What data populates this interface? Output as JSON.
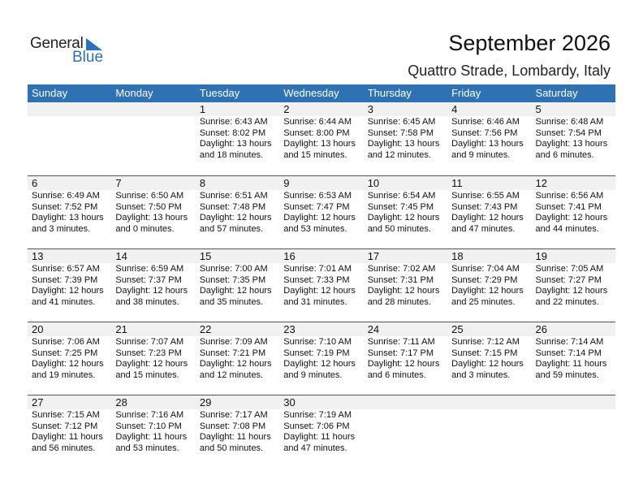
{
  "logo": {
    "word1": "General",
    "word2": "Blue"
  },
  "title": "September 2026",
  "location": "Quattro Strade, Lombardy, Italy",
  "colors": {
    "header": "#2e72b3",
    "date_band": "#f1f1f1"
  },
  "days": [
    "Sunday",
    "Monday",
    "Tuesday",
    "Wednesday",
    "Thursday",
    "Friday",
    "Saturday"
  ],
  "weeks": [
    [
      null,
      null,
      {
        "d": "1",
        "sunrise": "Sunrise: 6:43 AM",
        "sunset": "Sunset: 8:02 PM",
        "dl1": "Daylight: 13 hours",
        "dl2": "and 18 minutes."
      },
      {
        "d": "2",
        "sunrise": "Sunrise: 6:44 AM",
        "sunset": "Sunset: 8:00 PM",
        "dl1": "Daylight: 13 hours",
        "dl2": "and 15 minutes."
      },
      {
        "d": "3",
        "sunrise": "Sunrise: 6:45 AM",
        "sunset": "Sunset: 7:58 PM",
        "dl1": "Daylight: 13 hours",
        "dl2": "and 12 minutes."
      },
      {
        "d": "4",
        "sunrise": "Sunrise: 6:46 AM",
        "sunset": "Sunset: 7:56 PM",
        "dl1": "Daylight: 13 hours",
        "dl2": "and 9 minutes."
      },
      {
        "d": "5",
        "sunrise": "Sunrise: 6:48 AM",
        "sunset": "Sunset: 7:54 PM",
        "dl1": "Daylight: 13 hours",
        "dl2": "and 6 minutes."
      }
    ],
    [
      {
        "d": "6",
        "sunrise": "Sunrise: 6:49 AM",
        "sunset": "Sunset: 7:52 PM",
        "dl1": "Daylight: 13 hours",
        "dl2": "and 3 minutes."
      },
      {
        "d": "7",
        "sunrise": "Sunrise: 6:50 AM",
        "sunset": "Sunset: 7:50 PM",
        "dl1": "Daylight: 13 hours",
        "dl2": "and 0 minutes."
      },
      {
        "d": "8",
        "sunrise": "Sunrise: 6:51 AM",
        "sunset": "Sunset: 7:48 PM",
        "dl1": "Daylight: 12 hours",
        "dl2": "and 57 minutes."
      },
      {
        "d": "9",
        "sunrise": "Sunrise: 6:53 AM",
        "sunset": "Sunset: 7:47 PM",
        "dl1": "Daylight: 12 hours",
        "dl2": "and 53 minutes."
      },
      {
        "d": "10",
        "sunrise": "Sunrise: 6:54 AM",
        "sunset": "Sunset: 7:45 PM",
        "dl1": "Daylight: 12 hours",
        "dl2": "and 50 minutes."
      },
      {
        "d": "11",
        "sunrise": "Sunrise: 6:55 AM",
        "sunset": "Sunset: 7:43 PM",
        "dl1": "Daylight: 12 hours",
        "dl2": "and 47 minutes."
      },
      {
        "d": "12",
        "sunrise": "Sunrise: 6:56 AM",
        "sunset": "Sunset: 7:41 PM",
        "dl1": "Daylight: 12 hours",
        "dl2": "and 44 minutes."
      }
    ],
    [
      {
        "d": "13",
        "sunrise": "Sunrise: 6:57 AM",
        "sunset": "Sunset: 7:39 PM",
        "dl1": "Daylight: 12 hours",
        "dl2": "and 41 minutes."
      },
      {
        "d": "14",
        "sunrise": "Sunrise: 6:59 AM",
        "sunset": "Sunset: 7:37 PM",
        "dl1": "Daylight: 12 hours",
        "dl2": "and 38 minutes."
      },
      {
        "d": "15",
        "sunrise": "Sunrise: 7:00 AM",
        "sunset": "Sunset: 7:35 PM",
        "dl1": "Daylight: 12 hours",
        "dl2": "and 35 minutes."
      },
      {
        "d": "16",
        "sunrise": "Sunrise: 7:01 AM",
        "sunset": "Sunset: 7:33 PM",
        "dl1": "Daylight: 12 hours",
        "dl2": "and 31 minutes."
      },
      {
        "d": "17",
        "sunrise": "Sunrise: 7:02 AM",
        "sunset": "Sunset: 7:31 PM",
        "dl1": "Daylight: 12 hours",
        "dl2": "and 28 minutes."
      },
      {
        "d": "18",
        "sunrise": "Sunrise: 7:04 AM",
        "sunset": "Sunset: 7:29 PM",
        "dl1": "Daylight: 12 hours",
        "dl2": "and 25 minutes."
      },
      {
        "d": "19",
        "sunrise": "Sunrise: 7:05 AM",
        "sunset": "Sunset: 7:27 PM",
        "dl1": "Daylight: 12 hours",
        "dl2": "and 22 minutes."
      }
    ],
    [
      {
        "d": "20",
        "sunrise": "Sunrise: 7:06 AM",
        "sunset": "Sunset: 7:25 PM",
        "dl1": "Daylight: 12 hours",
        "dl2": "and 19 minutes."
      },
      {
        "d": "21",
        "sunrise": "Sunrise: 7:07 AM",
        "sunset": "Sunset: 7:23 PM",
        "dl1": "Daylight: 12 hours",
        "dl2": "and 15 minutes."
      },
      {
        "d": "22",
        "sunrise": "Sunrise: 7:09 AM",
        "sunset": "Sunset: 7:21 PM",
        "dl1": "Daylight: 12 hours",
        "dl2": "and 12 minutes."
      },
      {
        "d": "23",
        "sunrise": "Sunrise: 7:10 AM",
        "sunset": "Sunset: 7:19 PM",
        "dl1": "Daylight: 12 hours",
        "dl2": "and 9 minutes."
      },
      {
        "d": "24",
        "sunrise": "Sunrise: 7:11 AM",
        "sunset": "Sunset: 7:17 PM",
        "dl1": "Daylight: 12 hours",
        "dl2": "and 6 minutes."
      },
      {
        "d": "25",
        "sunrise": "Sunrise: 7:12 AM",
        "sunset": "Sunset: 7:15 PM",
        "dl1": "Daylight: 12 hours",
        "dl2": "and 3 minutes."
      },
      {
        "d": "26",
        "sunrise": "Sunrise: 7:14 AM",
        "sunset": "Sunset: 7:14 PM",
        "dl1": "Daylight: 11 hours",
        "dl2": "and 59 minutes."
      }
    ],
    [
      {
        "d": "27",
        "sunrise": "Sunrise: 7:15 AM",
        "sunset": "Sunset: 7:12 PM",
        "dl1": "Daylight: 11 hours",
        "dl2": "and 56 minutes."
      },
      {
        "d": "28",
        "sunrise": "Sunrise: 7:16 AM",
        "sunset": "Sunset: 7:10 PM",
        "dl1": "Daylight: 11 hours",
        "dl2": "and 53 minutes."
      },
      {
        "d": "29",
        "sunrise": "Sunrise: 7:17 AM",
        "sunset": "Sunset: 7:08 PM",
        "dl1": "Daylight: 11 hours",
        "dl2": "and 50 minutes."
      },
      {
        "d": "30",
        "sunrise": "Sunrise: 7:19 AM",
        "sunset": "Sunset: 7:06 PM",
        "dl1": "Daylight: 11 hours",
        "dl2": "and 47 minutes."
      },
      null,
      null,
      null
    ]
  ]
}
